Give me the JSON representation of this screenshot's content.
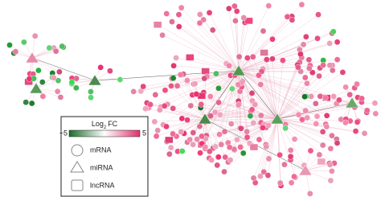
{
  "legend": {
    "title": "Log",
    "title_subscript": "2",
    "title_suffix": "FC",
    "scale_min": "−5",
    "scale_max": "5",
    "shapes": [
      "mRNA",
      "miRNA",
      "lncRNA"
    ]
  }
}
